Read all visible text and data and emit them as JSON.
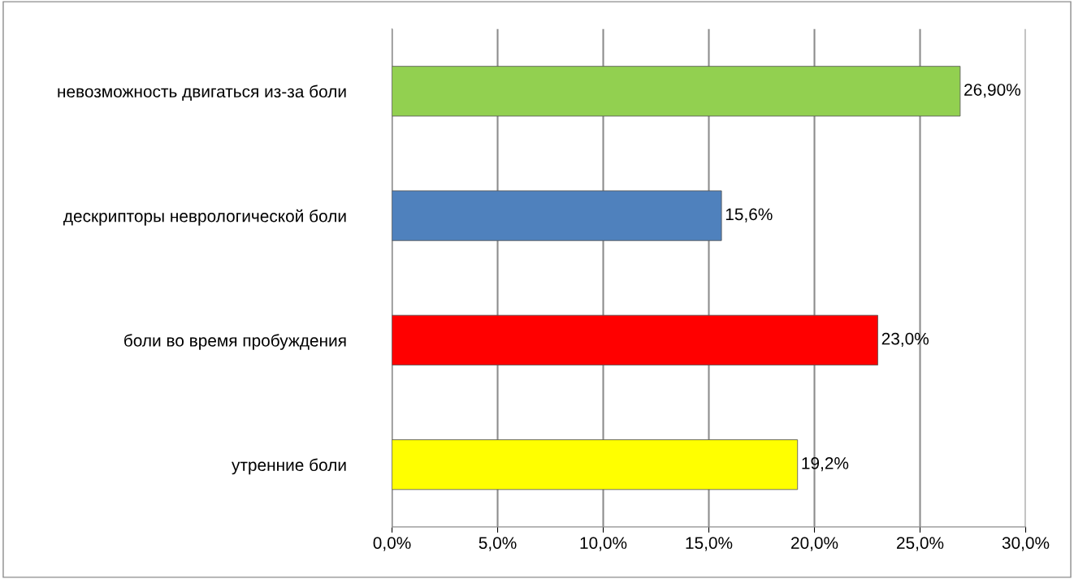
{
  "chart_data": {
    "type": "bar",
    "orientation": "horizontal",
    "categories": [
      "невозможность двигаться из-за боли",
      "дескрипторы неврологической боли",
      "боли во время пробуждения",
      "утренние боли"
    ],
    "values": [
      26.9,
      15.6,
      23.0,
      19.2
    ],
    "colors": [
      "#92d050",
      "#4f81bd",
      "#ff0000",
      "#ffff00"
    ],
    "value_labels": [
      "26,90%",
      "15,6%",
      "23,0%",
      "19,2%"
    ],
    "xlim": [
      0,
      30
    ],
    "xticks": [
      {
        "value": 0,
        "label": "0,0%"
      },
      {
        "value": 5,
        "label": "5,0%"
      },
      {
        "value": 10,
        "label": "10,0%"
      },
      {
        "value": 15,
        "label": "15,0%"
      },
      {
        "value": 20,
        "label": "20,0%"
      },
      {
        "value": 25,
        "label": "25,0%"
      },
      {
        "value": 30,
        "label": "30,0%"
      }
    ],
    "grid": "x",
    "legend": false
  }
}
